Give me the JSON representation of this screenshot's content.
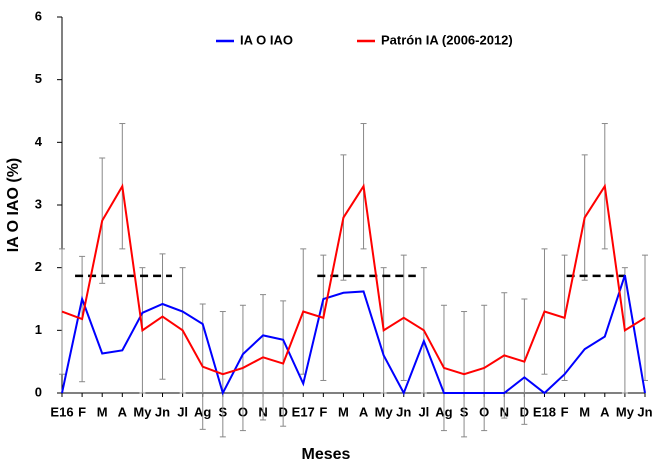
{
  "chart_data": {
    "type": "line",
    "x_label": "Meses",
    "y_label": "IA O IAO (%)",
    "categories": [
      "E16",
      "F",
      "M",
      "A",
      "My",
      "Jn",
      "Jl",
      "Ag",
      "S",
      "O",
      "N",
      "D",
      "E17",
      "F",
      "M",
      "A",
      "My",
      "Jn",
      "Jl",
      "Ag",
      "S",
      "O",
      "N",
      "D",
      "E18",
      "F",
      "M",
      "A",
      "My",
      "Jn"
    ],
    "series": [
      {
        "name": "IA O IAO",
        "color": "#0000ff",
        "values": [
          0,
          1.5,
          0.63,
          0.68,
          1.28,
          1.42,
          1.3,
          1.1,
          0,
          0.62,
          0.92,
          0.85,
          0.15,
          1.5,
          1.6,
          1.62,
          0.6,
          0,
          0.83,
          0,
          0,
          0,
          0,
          0.25,
          0,
          0.3,
          0.7,
          0.9,
          1.88,
          0
        ]
      },
      {
        "name": "Patrón IA (2006-2012)",
        "color": "#ff0000",
        "values": [
          1.3,
          1.18,
          2.75,
          3.3,
          1.0,
          1.22,
          1.0,
          0.42,
          0.3,
          0.4,
          0.57,
          0.47,
          1.3,
          1.2,
          2.8,
          3.3,
          1.0,
          1.2,
          1.0,
          0.4,
          0.3,
          0.4,
          0.6,
          0.5,
          1.3,
          1.2,
          2.8,
          3.3,
          1.0,
          1.2
        ],
        "errors": [
          1,
          1,
          1,
          1,
          1,
          1,
          1,
          1,
          1,
          1,
          1,
          1,
          1,
          1,
          1,
          1,
          1,
          1,
          1,
          1,
          1,
          1,
          1,
          1,
          1,
          1,
          1,
          1,
          1,
          1
        ]
      }
    ],
    "reference_lines": [
      {
        "y": 1.87,
        "x": [
          0.65,
          5.47
        ]
      },
      {
        "y": 1.87,
        "x": [
          12.7,
          17.6
        ]
      },
      {
        "y": 1.87,
        "x": [
          25.1,
          28.0
        ]
      }
    ],
    "ylim": [
      0,
      6
    ],
    "yticks": [
      0,
      1,
      2,
      3,
      4,
      5,
      6
    ],
    "legend": "top"
  }
}
